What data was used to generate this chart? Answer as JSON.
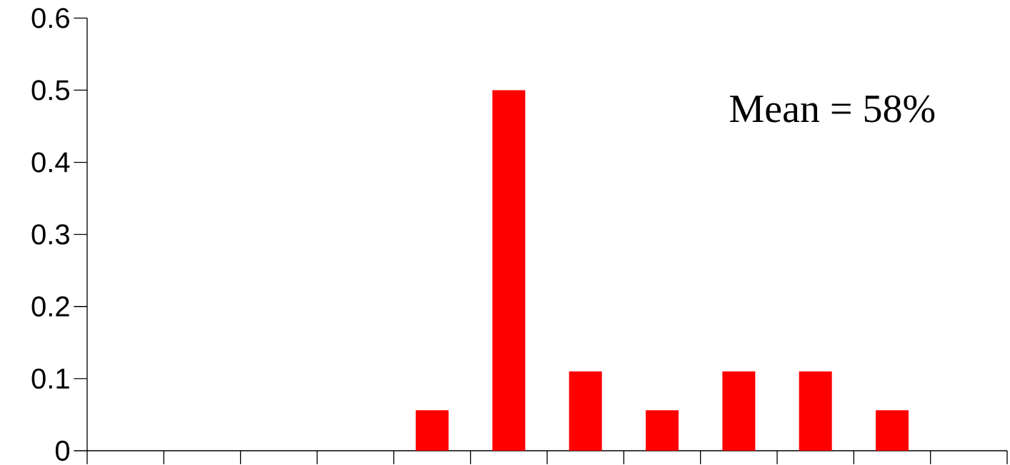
{
  "chart_data": {
    "type": "bar",
    "categories": [
      null,
      null,
      null,
      null,
      null,
      null,
      null,
      null,
      null,
      null,
      null,
      null
    ],
    "values": [
      0,
      0,
      0,
      0,
      0.056,
      0.5,
      0.11,
      0.056,
      0.11,
      0.11,
      0.056,
      0
    ],
    "color": "#ff0000",
    "ylim": [
      0,
      0.6
    ],
    "yticks": [
      0,
      0.1,
      0.2,
      0.3,
      0.4,
      0.5,
      0.6
    ],
    "annotations": [
      "Mean = 58%"
    ]
  }
}
